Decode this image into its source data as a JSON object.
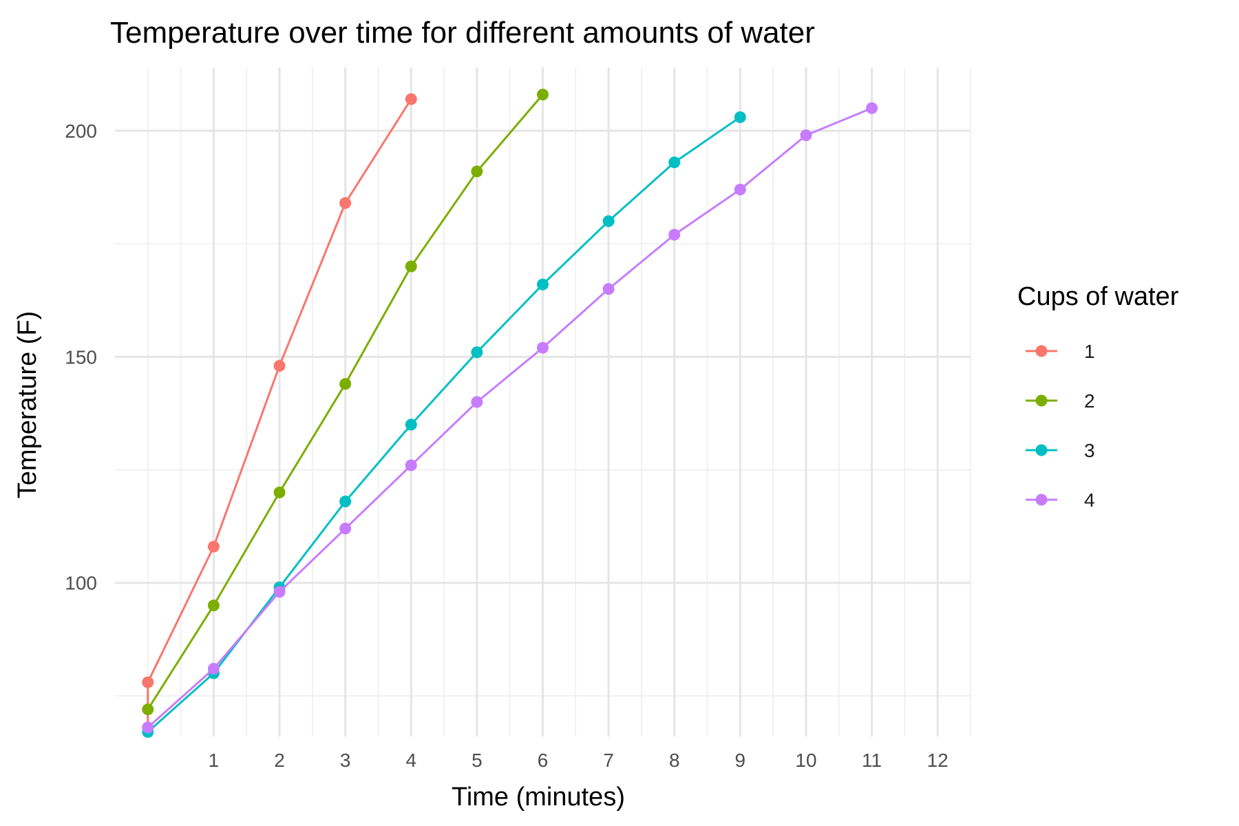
{
  "chart_data": {
    "type": "line",
    "title": "Temperature over time for different amounts of water",
    "xlabel": "Time (minutes)",
    "ylabel": "Temperature (F)",
    "xlim": [
      -0.5,
      12.5
    ],
    "ylim": [
      66,
      214
    ],
    "x_ticks": [
      1,
      2,
      3,
      4,
      5,
      6,
      7,
      8,
      9,
      10,
      11,
      12
    ],
    "x_minor_ticks": [
      0,
      0.5,
      1.5,
      2.5,
      3.5,
      4.5,
      5.5,
      6.5,
      7.5,
      8.5,
      9.5,
      10.5,
      11.5,
      12.5
    ],
    "y_ticks": [
      100,
      150,
      200
    ],
    "y_minor_ticks": [
      75,
      125,
      175
    ],
    "grid": true,
    "legend": {
      "title": "Cups of water",
      "position": "right"
    },
    "series": [
      {
        "name": "1",
        "color": "#F8766D",
        "x": [
          0,
          0,
          1,
          2,
          3,
          4
        ],
        "y": [
          68,
          78,
          108,
          148,
          184,
          207
        ]
      },
      {
        "name": "2",
        "color": "#7CAE00",
        "x": [
          0,
          1,
          2,
          3,
          4,
          5,
          6
        ],
        "y": [
          72,
          95,
          120,
          144,
          170,
          191,
          208
        ]
      },
      {
        "name": "3",
        "color": "#00BFC4",
        "x": [
          0,
          1,
          2,
          3,
          4,
          5,
          6,
          7,
          8,
          9
        ],
        "y": [
          67,
          80,
          99,
          118,
          135,
          151,
          166,
          180,
          193,
          203
        ]
      },
      {
        "name": "4",
        "color": "#C77CFF",
        "x": [
          0,
          1,
          2,
          3,
          4,
          5,
          6,
          7,
          8,
          9,
          10,
          11
        ],
        "y": [
          68,
          81,
          98,
          112,
          126,
          140,
          152,
          165,
          177,
          187,
          199,
          205
        ]
      }
    ]
  }
}
